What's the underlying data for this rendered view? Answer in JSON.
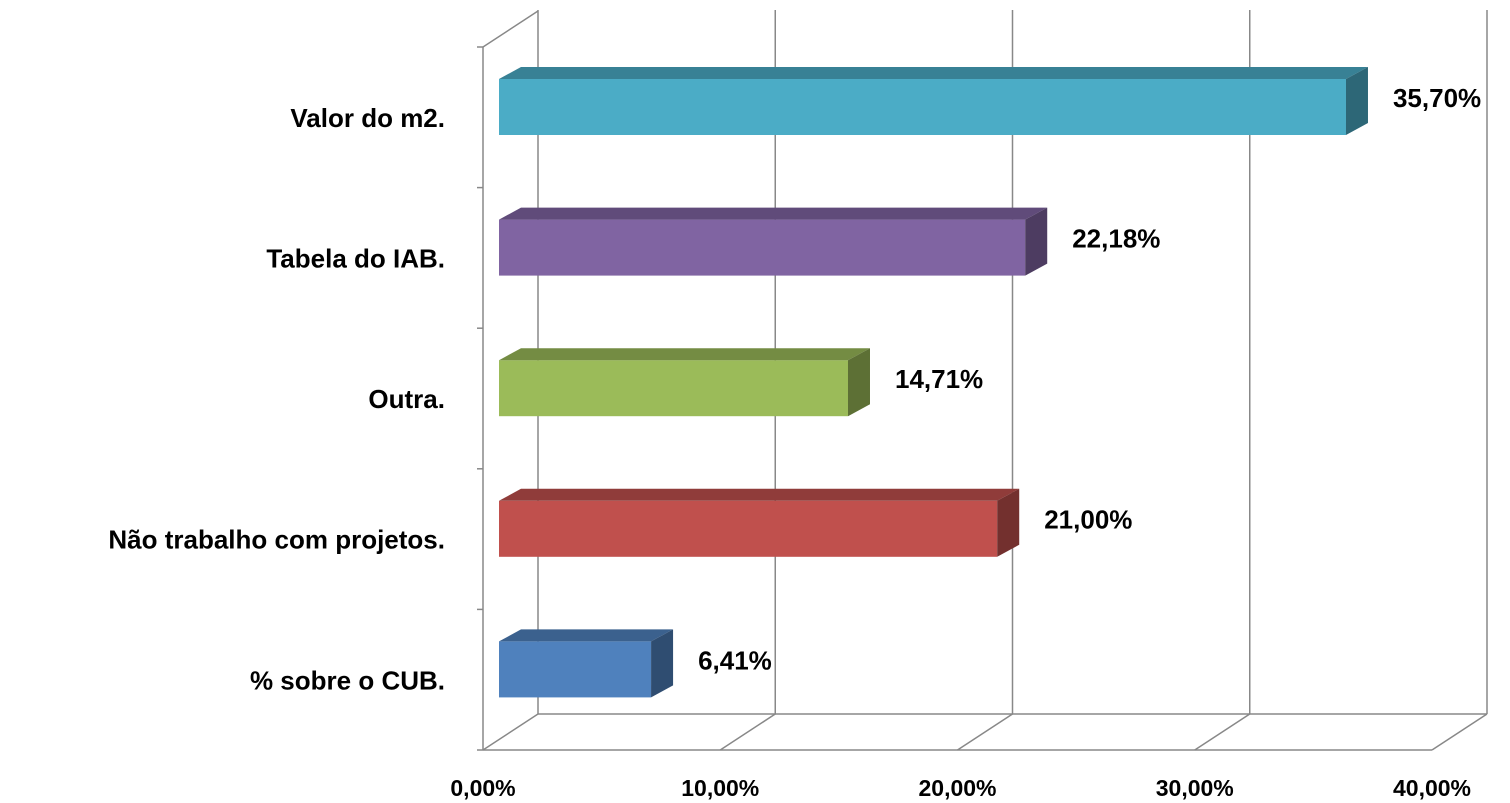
{
  "chart_data": {
    "type": "bar3d_horizontal",
    "categories": [
      "Valor do m2.",
      "Tabela do IAB.",
      "Outra.",
      "Não trabalho com projetos.",
      "% sobre o CUB."
    ],
    "values": [
      35.7,
      22.18,
      14.71,
      21.0,
      6.41
    ],
    "value_labels": [
      "35,70%",
      "22,18%",
      "14,71%",
      "21,00%",
      "6,41%"
    ],
    "colors": [
      "#4bacc6",
      "#8064a2",
      "#9bbb59",
      "#c0504d",
      "#4f81bd"
    ],
    "xlim": [
      0,
      40
    ],
    "xticks": [
      {
        "value": 0,
        "label": "0,00%"
      },
      {
        "value": 10,
        "label": "10,00%"
      },
      {
        "value": 20,
        "label": "20,00%"
      },
      {
        "value": 30,
        "label": "30,00%"
      },
      {
        "value": 40,
        "label": "40,00%"
      }
    ],
    "grid": true
  }
}
